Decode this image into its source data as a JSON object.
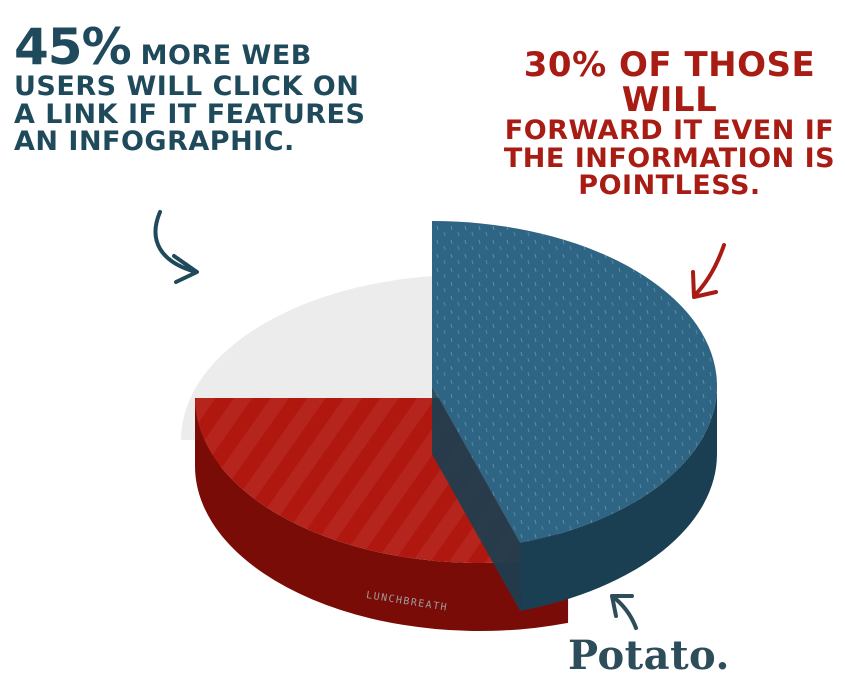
{
  "annotations": {
    "left": {
      "percent": "45%",
      "line1_rest": "more Web",
      "line2": "users will click on",
      "line3": "a link if it features",
      "line4": "an infographic."
    },
    "right": {
      "line1": "30% of those will",
      "line2": "forward it even if",
      "line3": "the information is",
      "line4": "Pointless."
    },
    "bottom": "Potato."
  },
  "credit": "LUNCHBREATH",
  "colors": {
    "blue": "#2e6584",
    "blue_dark": "#1a3f52",
    "red": "#b0170f",
    "red_dark": "#7a0c08",
    "white": "#ececec",
    "white_dark": "#bdbdbd",
    "ink_blue": "#1e4a5b",
    "ink_red": "#a81c14"
  },
  "chart_data": {
    "type": "pie",
    "style": "3d exploded",
    "slices": [
      {
        "value": 45,
        "label": "45%",
        "color": "#2e6584"
      },
      {
        "value": 30,
        "label": "30%",
        "color": "#b0170f"
      },
      {
        "value": 25,
        "label": "Potato.",
        "color": "#ececec"
      }
    ]
  }
}
